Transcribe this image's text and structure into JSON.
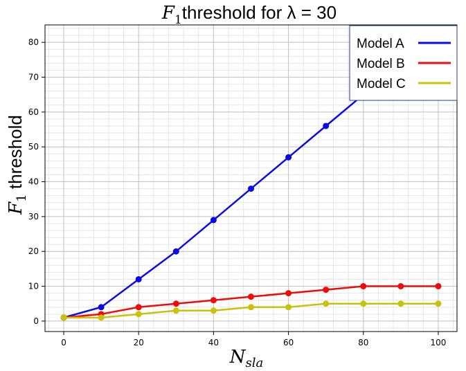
{
  "chart_data": {
    "type": "line",
    "title": {
      "symbol": "F",
      "subscript": "1",
      "text": "threshold for λ = 30"
    },
    "xlabel": {
      "symbol": "N",
      "subscript": "sla"
    },
    "ylabel": {
      "symbol": "F",
      "subscript": "1",
      "text": " threshold"
    },
    "x": [
      0,
      10,
      20,
      30,
      40,
      50,
      60,
      70,
      80,
      90,
      100
    ],
    "xlim": [
      -5,
      105
    ],
    "ylim": [
      -3,
      85
    ],
    "xticks": [
      0,
      20,
      40,
      60,
      80,
      100
    ],
    "yticks": [
      0,
      10,
      20,
      30,
      40,
      50,
      60,
      70,
      80
    ],
    "grid": true,
    "legend_position": "top-right",
    "series": [
      {
        "name": "Model A",
        "color": "#0a0ae6",
        "values": [
          1,
          4,
          12,
          20,
          29,
          38,
          47,
          56,
          65,
          74,
          83
        ]
      },
      {
        "name": "Model B",
        "color": "#ef0b0b",
        "values": [
          1,
          2,
          4,
          5,
          6,
          7,
          8,
          9,
          10,
          10,
          10
        ]
      },
      {
        "name": "Model C",
        "color": "#c8c20a",
        "values": [
          1,
          1,
          2,
          3,
          3,
          4,
          4,
          5,
          5,
          5,
          5
        ]
      }
    ]
  }
}
